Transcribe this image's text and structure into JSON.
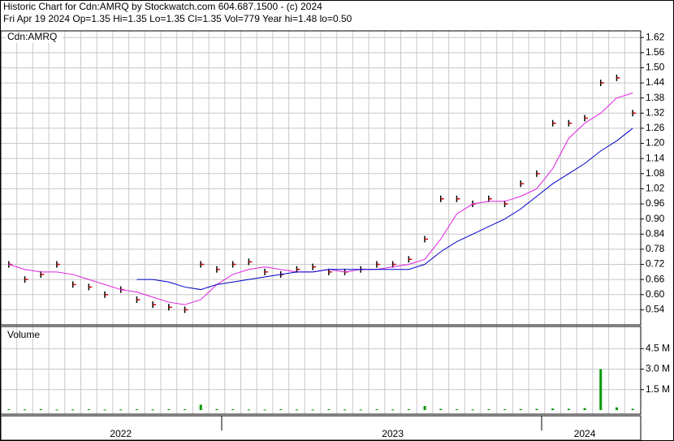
{
  "header": {
    "title": "Historic Chart for Cdn:AMRQ by Stockwatch.com 604.687.1500 - (c) 2024",
    "quote": "Fri Apr 19 2024  Op=1.35  Hi=1.35  Lo=1.35  Cl=1.35  Vol=779  Year hi=1.48  lo=0.50"
  },
  "chart_data": [
    {
      "type": "line",
      "title": "Cdn:AMRQ",
      "ylim": [
        0.48,
        1.64
      ],
      "yticks": [
        0.54,
        {
          "value": 0.6,
          "label": "0.60"
        },
        0.66,
        0.72,
        0.78,
        0.84,
        {
          "value": 0.9,
          "label": "0.90"
        },
        0.96,
        1.02,
        1.08,
        1.14,
        {
          "value": 1.2,
          "label": "1.20"
        },
        1.26,
        1.32,
        1.38,
        1.44,
        {
          "value": 1.5,
          "label": "1.50"
        },
        1.56,
        1.62
      ],
      "grid": true,
      "series": [
        {
          "color": "#000000",
          "values": [
            0.72,
            0.66,
            0.68,
            0.72,
            0.64,
            0.63,
            0.6,
            0.62,
            0.58,
            0.56,
            0.55,
            0.54,
            0.72,
            0.7,
            0.72,
            0.73,
            0.69,
            0.68,
            0.7,
            0.71,
            0.69,
            0.69,
            0.7,
            0.72,
            0.72,
            0.74,
            0.82,
            0.98,
            0.98,
            0.96,
            0.98,
            0.96,
            1.04,
            1.08,
            1.28,
            1.28,
            1.3,
            1.44,
            1.46,
            1.32
          ]
        },
        {
          "color": "#e020e0",
          "values": [
            0.72,
            0.7,
            0.69,
            0.69,
            0.68,
            0.66,
            0.64,
            0.62,
            0.61,
            0.59,
            0.57,
            0.56,
            0.58,
            0.64,
            0.68,
            0.7,
            0.71,
            0.7,
            0.69,
            0.69,
            0.7,
            0.69,
            0.7,
            0.7,
            0.71,
            0.72,
            0.74,
            0.82,
            0.92,
            0.96,
            0.97,
            0.97,
            0.99,
            1.02,
            1.1,
            1.22,
            1.28,
            1.32,
            1.38,
            1.4
          ]
        },
        {
          "color": "#0000cc",
          "values": [
            null,
            null,
            null,
            null,
            null,
            null,
            null,
            null,
            0.66,
            0.66,
            0.65,
            0.63,
            0.62,
            0.64,
            0.65,
            0.66,
            0.67,
            0.68,
            0.69,
            0.69,
            0.7,
            0.7,
            0.7,
            0.7,
            0.7,
            0.7,
            0.72,
            0.77,
            0.81,
            0.84,
            0.87,
            0.9,
            0.94,
            0.99,
            1.04,
            1.08,
            1.12,
            1.17,
            1.21,
            1.26
          ]
        }
      ]
    },
    {
      "type": "bar",
      "title": "Volume",
      "ylim": [
        0,
        6000000
      ],
      "yticks": [
        {
          "value": 1500000,
          "label": "1.5 M"
        },
        {
          "value": 3000000,
          "label": "3.0 M"
        },
        {
          "value": 4500000,
          "label": "4.5 M"
        }
      ],
      "grid": true,
      "color": "#009900",
      "categories": [
        null,
        null,
        null,
        null,
        null,
        null,
        null,
        "2022",
        null,
        null,
        null,
        null,
        null,
        null,
        null,
        null,
        null,
        null,
        null,
        null,
        null,
        null,
        null,
        null,
        "2023",
        null,
        null,
        null,
        null,
        null,
        null,
        null,
        null,
        null,
        null,
        null,
        "2024",
        null,
        null,
        null
      ],
      "values": [
        60000,
        50000,
        80000,
        40000,
        50000,
        60000,
        40000,
        50000,
        60000,
        50000,
        70000,
        60000,
        400000,
        80000,
        60000,
        50000,
        40000,
        60000,
        50000,
        40000,
        60000,
        50000,
        40000,
        60000,
        50000,
        70000,
        300000,
        90000,
        60000,
        50000,
        70000,
        60000,
        80000,
        90000,
        120000,
        100000,
        150000,
        3000000,
        200000,
        100000
      ]
    }
  ]
}
